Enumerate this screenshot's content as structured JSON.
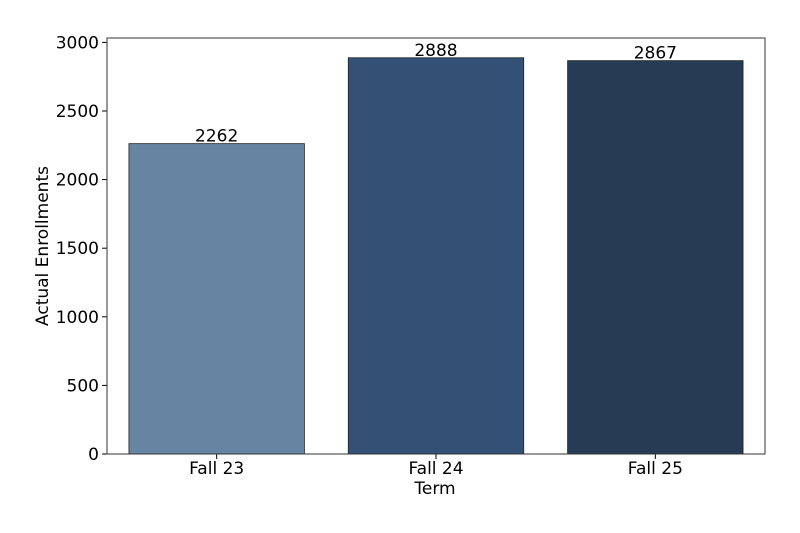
{
  "chart_data": {
    "type": "bar",
    "x_label": "Term",
    "y_label": "Actual Enrollments",
    "categories": [
      "Fall 23",
      "Fall 24",
      "Fall 25"
    ],
    "values": [
      2262,
      2888,
      2867
    ],
    "colors": [
      "#6685a3",
      "#335075",
      "#283b54"
    ],
    "ylim": [
      0,
      3032
    ],
    "yticks": [
      0,
      500,
      1000,
      1500,
      2000,
      2500,
      3000
    ],
    "grid": false
  }
}
